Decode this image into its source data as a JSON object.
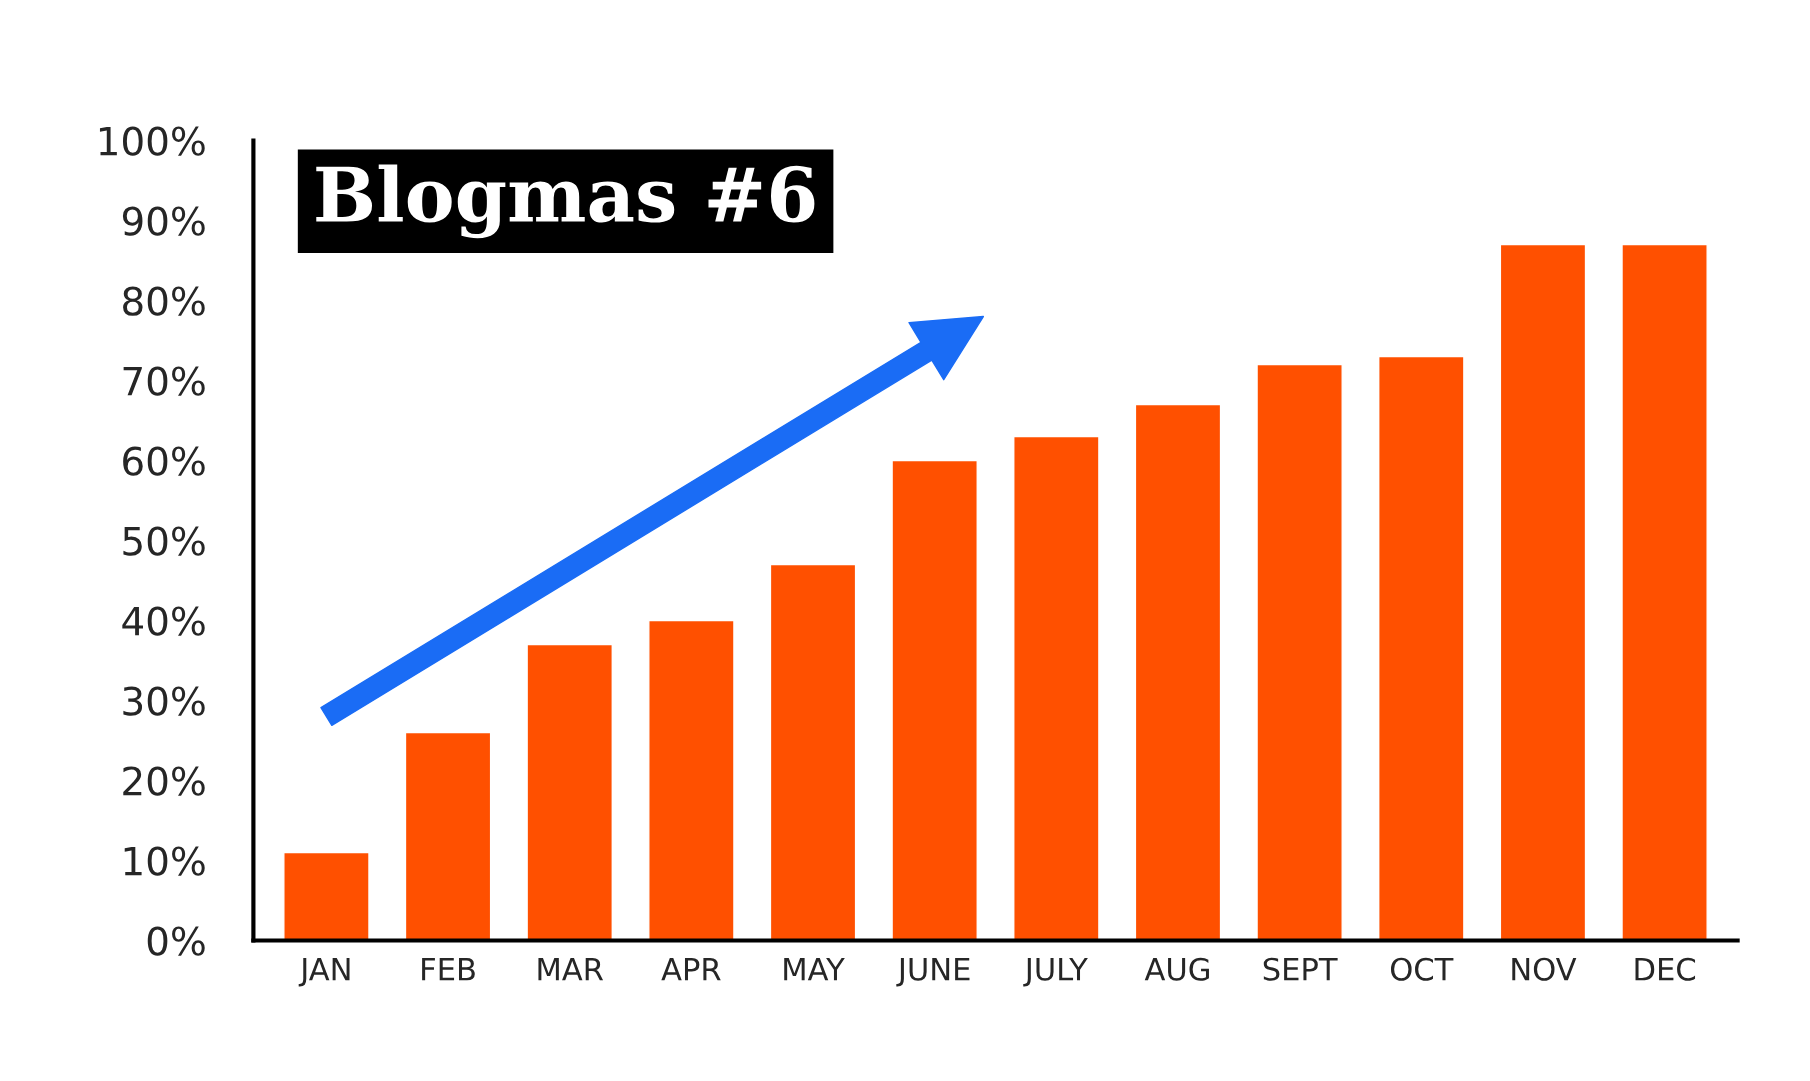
{
  "chart_data": {
    "type": "bar",
    "title": "Blogmas #6",
    "categories": [
      "JAN",
      "FEB",
      "MAR",
      "APR",
      "MAY",
      "JUNE",
      "JULY",
      "AUG",
      "SEPT",
      "OCT",
      "NOV",
      "DEC"
    ],
    "values": [
      11,
      26,
      37,
      40,
      47,
      60,
      63,
      67,
      72,
      73,
      87,
      87
    ],
    "color": "#ff5000",
    "ylim": [
      0,
      100
    ],
    "yticks": [
      {
        "value": 0,
        "label": "0%"
      },
      {
        "value": 10,
        "label": "10%"
      },
      {
        "value": 20,
        "label": "20%"
      },
      {
        "value": 30,
        "label": "30%"
      },
      {
        "value": 40,
        "label": "40%"
      },
      {
        "value": 50,
        "label": "50%"
      },
      {
        "value": 60,
        "label": "60%"
      },
      {
        "value": 70,
        "label": "70%"
      },
      {
        "value": 80,
        "label": "80%"
      },
      {
        "value": 90,
        "label": "90%"
      },
      {
        "value": 100,
        "label": "100%"
      }
    ],
    "grid": false
  }
}
